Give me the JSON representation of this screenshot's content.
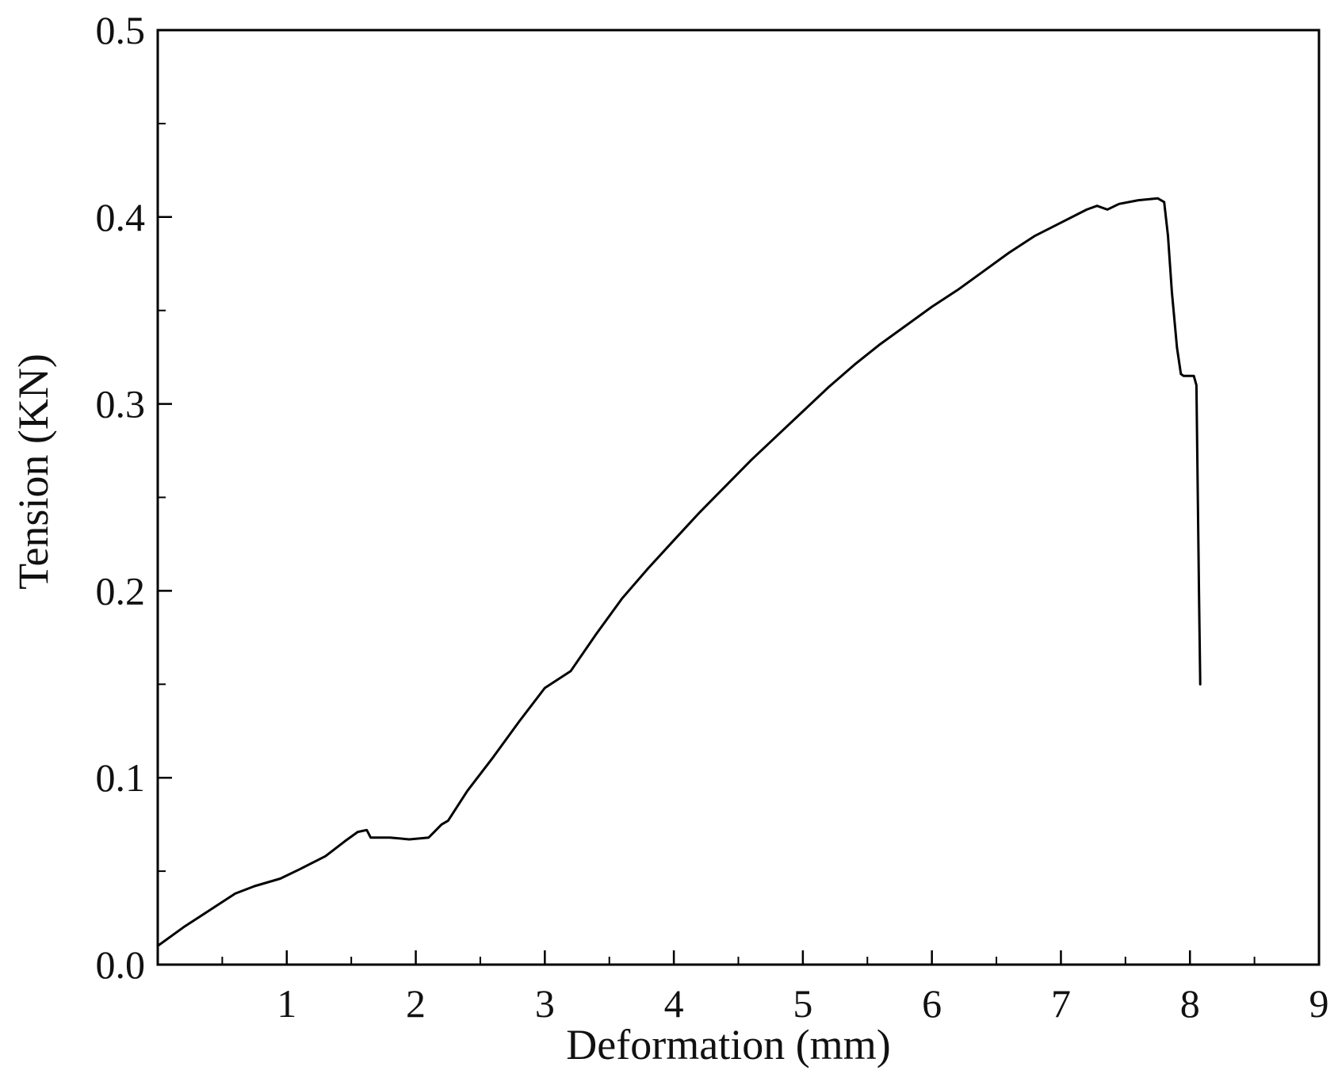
{
  "chart_data": {
    "type": "line",
    "title": "",
    "xlabel": "Deformation (mm)",
    "ylabel": "Tension (KN)",
    "xlim": [
      0,
      9
    ],
    "ylim": [
      0,
      0.5
    ],
    "x_ticks": [
      {
        "value": 1,
        "label": "1"
      },
      {
        "value": 2,
        "label": "2"
      },
      {
        "value": 3,
        "label": "3"
      },
      {
        "value": 4,
        "label": "4"
      },
      {
        "value": 5,
        "label": "5"
      },
      {
        "value": 6,
        "label": "6"
      },
      {
        "value": 7,
        "label": "7"
      },
      {
        "value": 8,
        "label": "8"
      },
      {
        "value": 9,
        "label": "9"
      }
    ],
    "y_ticks": [
      {
        "value": 0.0,
        "label": "0.0"
      },
      {
        "value": 0.1,
        "label": "0.1"
      },
      {
        "value": 0.2,
        "label": "0.2"
      },
      {
        "value": 0.3,
        "label": "0.3"
      },
      {
        "value": 0.4,
        "label": "0.4"
      },
      {
        "value": 0.5,
        "label": "0.5"
      }
    ],
    "grid": false,
    "legend": "none",
    "line_color": "#000000",
    "series": [
      {
        "x": [
          0.0,
          0.2,
          0.4,
          0.6,
          0.75,
          0.95,
          1.1,
          1.3,
          1.45,
          1.55,
          1.62,
          1.65,
          1.8,
          1.95,
          2.1,
          2.2,
          2.25,
          2.4,
          2.6,
          2.8,
          3.0,
          3.2,
          3.4,
          3.6,
          3.8,
          4.0,
          4.2,
          4.4,
          4.6,
          4.8,
          5.0,
          5.2,
          5.4,
          5.6,
          5.8,
          6.0,
          6.2,
          6.4,
          6.6,
          6.8,
          7.0,
          7.2,
          7.28,
          7.36,
          7.45,
          7.6,
          7.75,
          7.8,
          7.83,
          7.86,
          7.9,
          7.93,
          7.95,
          8.0,
          8.03,
          8.05,
          8.07,
          8.08
        ],
        "y": [
          0.01,
          0.02,
          0.029,
          0.038,
          0.042,
          0.046,
          0.051,
          0.058,
          0.066,
          0.071,
          0.072,
          0.068,
          0.068,
          0.067,
          0.068,
          0.075,
          0.077,
          0.093,
          0.111,
          0.13,
          0.148,
          0.157,
          0.177,
          0.196,
          0.212,
          0.227,
          0.242,
          0.256,
          0.27,
          0.283,
          0.296,
          0.309,
          0.321,
          0.332,
          0.342,
          0.352,
          0.361,
          0.371,
          0.381,
          0.39,
          0.397,
          0.404,
          0.406,
          0.404,
          0.407,
          0.409,
          0.41,
          0.408,
          0.39,
          0.36,
          0.33,
          0.316,
          0.315,
          0.315,
          0.315,
          0.31,
          0.2,
          0.15
        ]
      }
    ]
  }
}
